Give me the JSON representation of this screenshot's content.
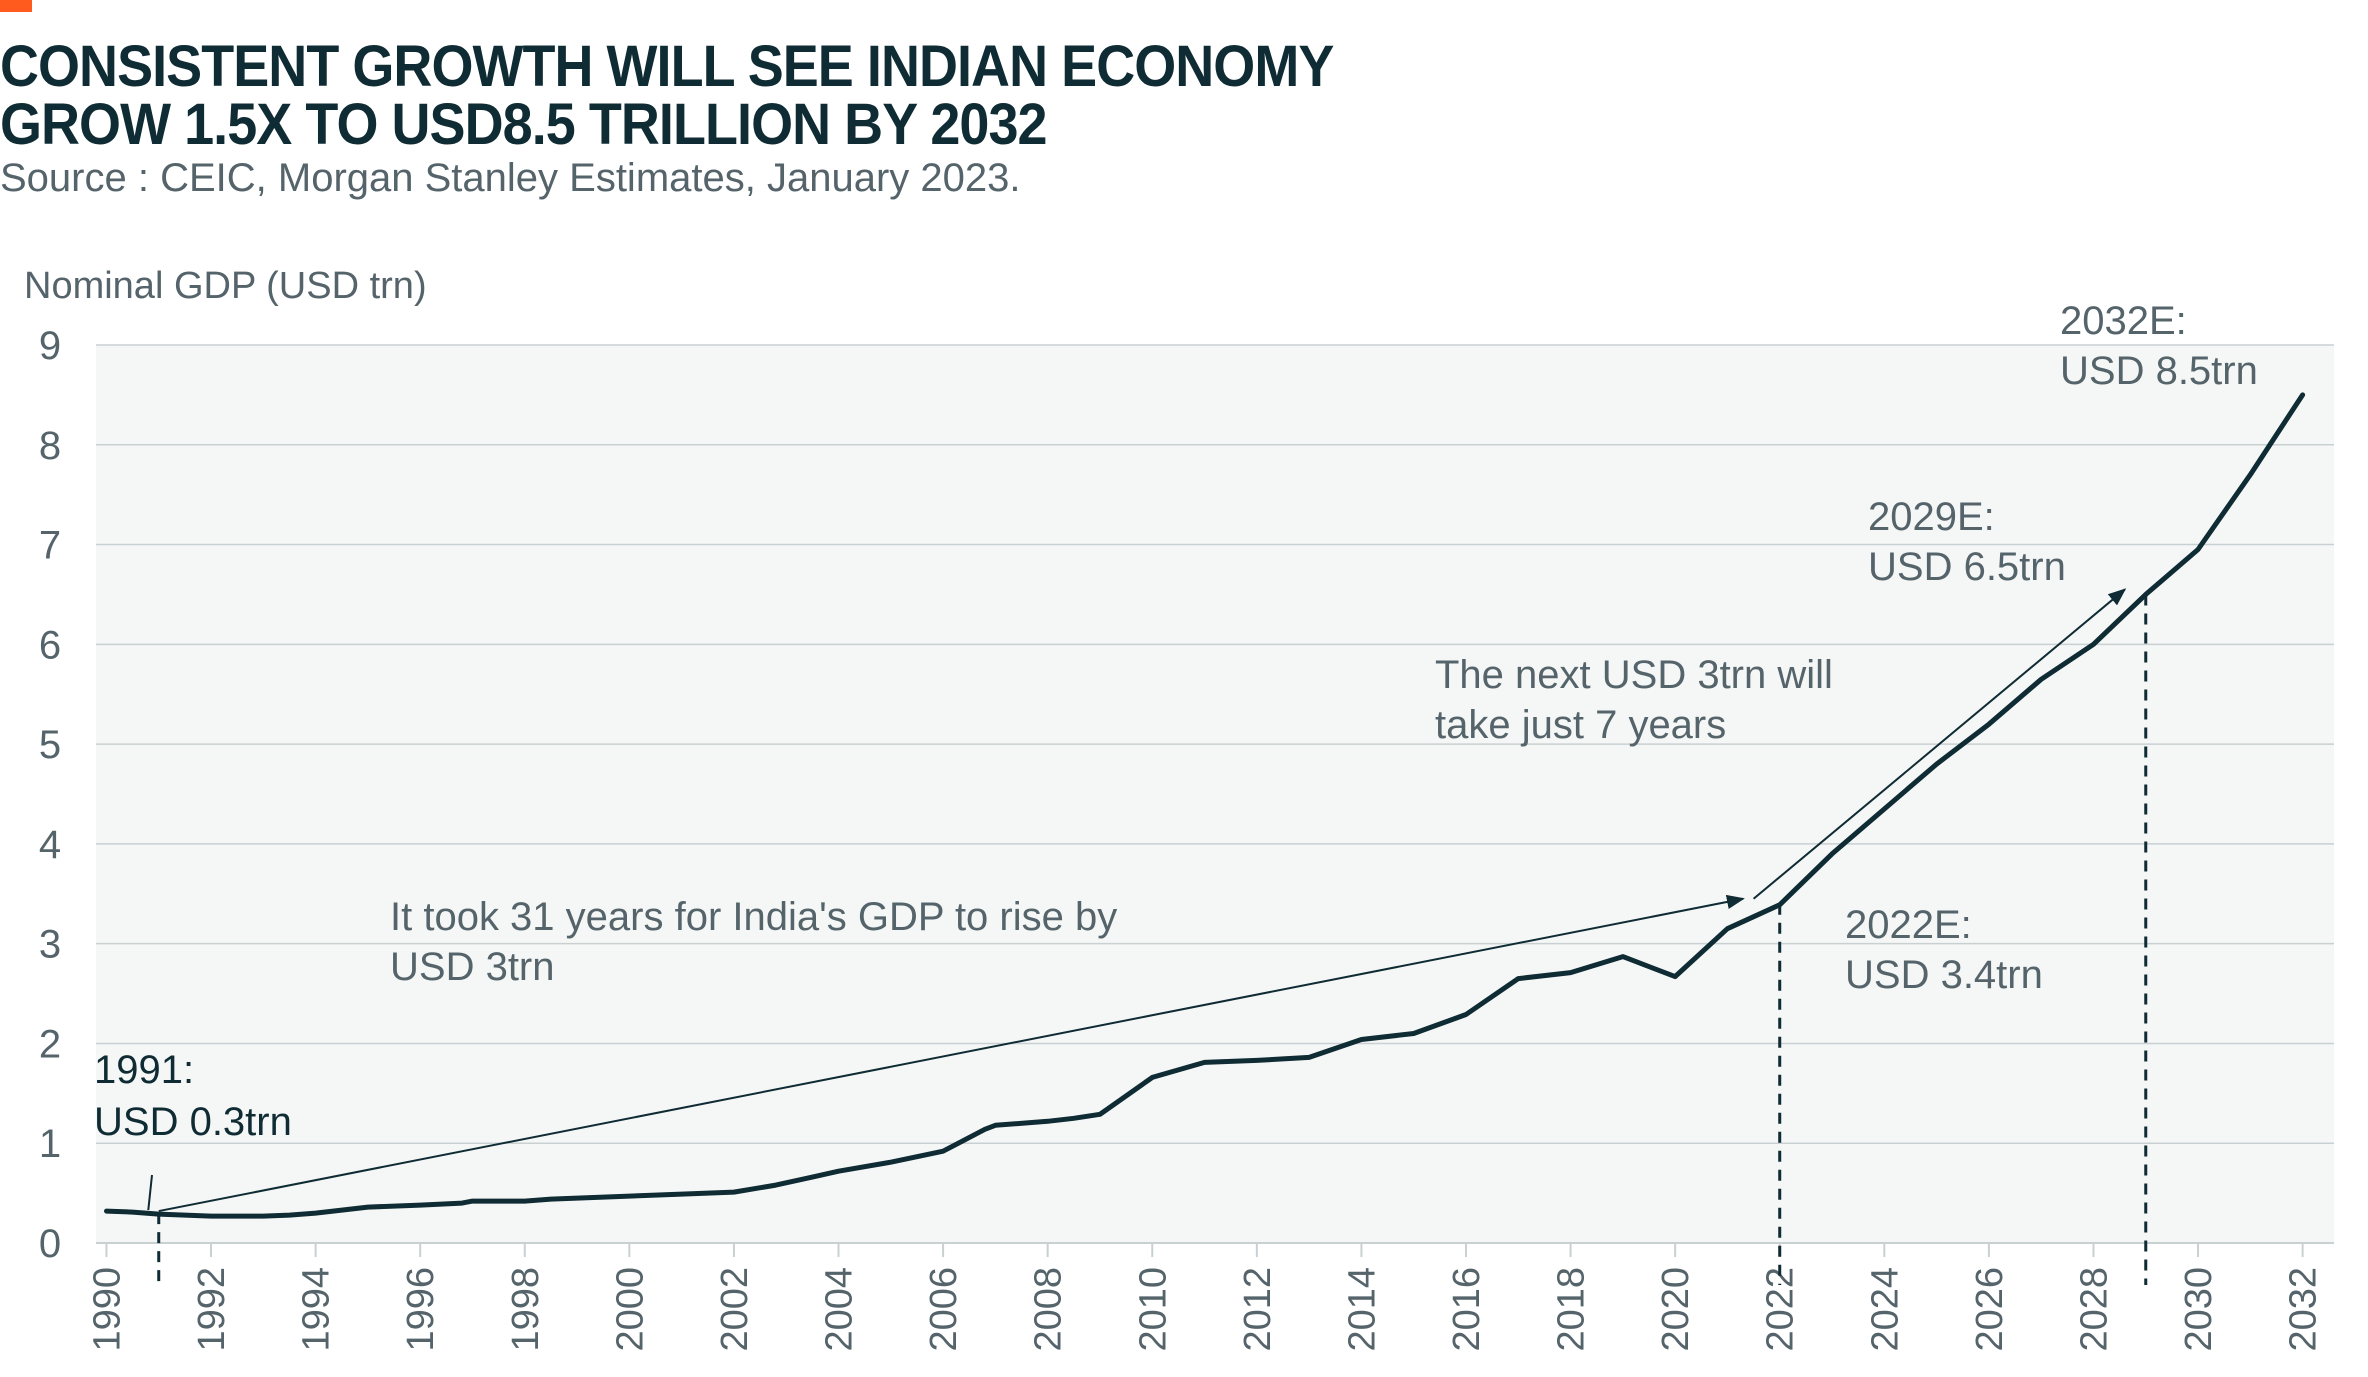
{
  "header": {
    "title_line1": "CONSISTENT GROWTH WILL SEE INDIAN ECONOMY",
    "title_line2": "GROW 1.5X TO USD8.5 TRILLION BY 2032",
    "source": "Source : CEIC, Morgan Stanley Estimates, January 2023."
  },
  "colors": {
    "accent": "#ff5b1f",
    "line": "#0f2b33",
    "plot_bg": "#f5f7f6",
    "grid": "#c9d0d2",
    "text_muted": "#55646a"
  },
  "chart_data": {
    "type": "line",
    "ylabel": "Nominal GDP (USD trn)",
    "xlabel": "",
    "xlim": [
      1989.8,
      2032.6
    ],
    "ylim": [
      0,
      9
    ],
    "yticks": [
      "0",
      "1",
      "2",
      "3",
      "4",
      "5",
      "6",
      "7",
      "8",
      "9"
    ],
    "xticks": [
      "1990",
      "1992",
      "1994",
      "1996",
      "1998",
      "2000",
      "2002",
      "2004",
      "2006",
      "2008",
      "2010",
      "2012",
      "2014",
      "2016",
      "2018",
      "2020",
      "2022",
      "2024",
      "2026",
      "2028",
      "2030",
      "2032"
    ],
    "grid": true,
    "legend": "none",
    "series": [
      {
        "x": [
          1990,
          1990.5,
          1991,
          1991.5,
          1992,
          1993,
          1993.5,
          1994,
          1994.5,
          1995,
          1996,
          1996.8,
          1997,
          1998,
          1998.5,
          1999,
          2000,
          2001,
          2002,
          2002.8,
          2003.5,
          2004,
          2005,
          2006,
          2006.8,
          2007,
          2008,
          2008.5,
          2009,
          2010,
          2011,
          2012,
          2013,
          2014,
          2015,
          2016,
          2017,
          2018,
          2019,
          2020,
          2021,
          2022,
          2023,
          2024,
          2025,
          2026,
          2027,
          2028,
          2029,
          2030,
          2031,
          2032
        ],
        "values": [
          0.32,
          0.31,
          0.29,
          0.28,
          0.27,
          0.27,
          0.28,
          0.3,
          0.33,
          0.36,
          0.38,
          0.4,
          0.42,
          0.42,
          0.44,
          0.45,
          0.47,
          0.49,
          0.51,
          0.58,
          0.66,
          0.72,
          0.81,
          0.92,
          1.14,
          1.18,
          1.22,
          1.25,
          1.29,
          1.66,
          1.81,
          1.83,
          1.86,
          2.04,
          2.1,
          2.29,
          2.65,
          2.71,
          2.87,
          2.67,
          3.15,
          3.39,
          3.9,
          4.35,
          4.8,
          5.2,
          5.65,
          6.0,
          6.5,
          6.95,
          7.7,
          8.5
        ]
      }
    ],
    "markers": [
      {
        "label": "1991",
        "x": 1991,
        "y": 0.3
      },
      {
        "label": "2022E",
        "x": 2022,
        "y": 3.4
      },
      {
        "label": "2029E",
        "x": 2029,
        "y": 6.5
      }
    ],
    "annotations": {
      "a1991_line1": "1991:",
      "a1991_line2": "USD 0.3trn",
      "a2022_line1": "2022E:",
      "a2022_line2": "USD 3.4trn",
      "a2029_line1": "2029E:",
      "a2029_line2": "USD 6.5trn",
      "a2032_line1": "2032E:",
      "a2032_line2": "USD 8.5trn",
      "took_line1": "It took 31 years for India's GDP to rise by",
      "took_line2": "USD 3trn",
      "next_line1": "The next USD 3trn will",
      "next_line2": "take just 7 years"
    }
  }
}
